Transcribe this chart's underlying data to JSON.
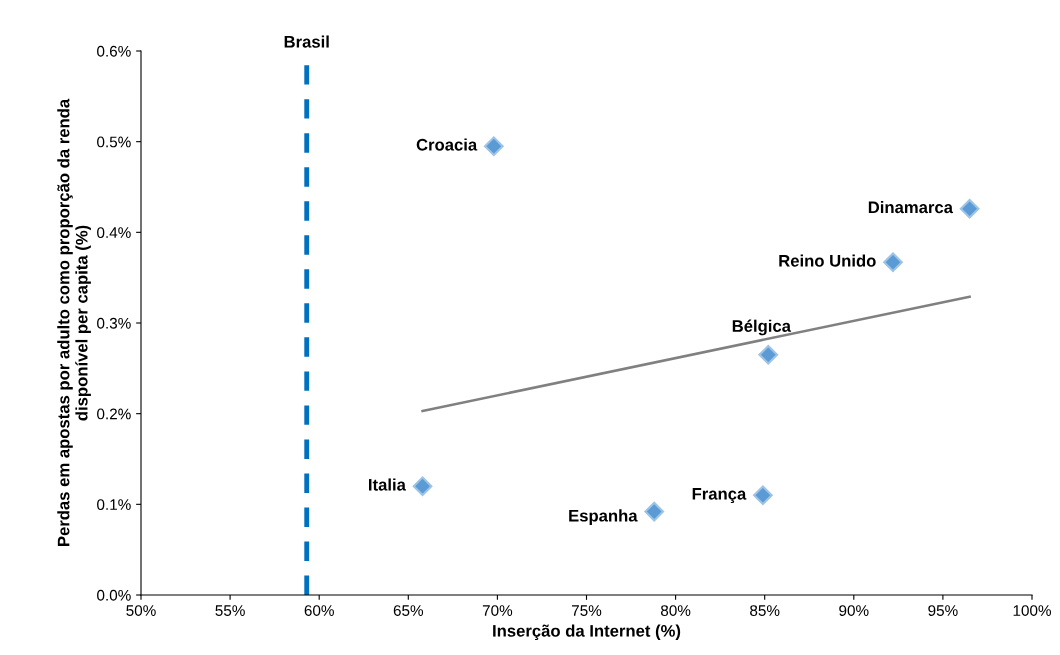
{
  "chart_data": {
    "type": "scatter",
    "xlabel": "Inserção da Internet (%)",
    "ylabel": "Perdas em apostas por adulto como proporção da renda\ndisponível per capita (%)",
    "xlim": [
      50,
      100
    ],
    "xticks": [
      {
        "value": 50,
        "label": "50%"
      },
      {
        "value": 55,
        "label": "55%"
      },
      {
        "value": 60,
        "label": "60%"
      },
      {
        "value": 65,
        "label": "65%"
      },
      {
        "value": 70,
        "label": "70%"
      },
      {
        "value": 75,
        "label": "75%"
      },
      {
        "value": 80,
        "label": "80%"
      },
      {
        "value": 85,
        "label": "85%"
      },
      {
        "value": 90,
        "label": "90%"
      },
      {
        "value": 95,
        "label": "95%"
      },
      {
        "value": 100,
        "label": "100%"
      }
    ],
    "ylim": [
      0,
      0.6
    ],
    "yticks": [
      {
        "value": 0,
        "label": "0.0%"
      },
      {
        "value": 0.1,
        "label": "0.1%"
      },
      {
        "value": 0.2,
        "label": "0.2%"
      },
      {
        "value": 0.3,
        "label": "0.3%"
      },
      {
        "value": 0.4,
        "label": "0.4%"
      },
      {
        "value": 0.5,
        "label": "0.5%"
      },
      {
        "value": 0.6,
        "label": "0.6%"
      }
    ],
    "grid": false,
    "legend": false,
    "marker": "diamond",
    "series": [
      {
        "color": "#5b9bd5",
        "x": [
          69.8,
          96.5,
          92.2,
          85.2,
          65.8,
          84.9,
          78.8
        ],
        "values": [
          0.495,
          0.426,
          0.367,
          0.265,
          0.12,
          0.11,
          0.092
        ]
      },
      {
        "type": "line",
        "color": "#808080",
        "x": [
          65.8,
          96.5
        ],
        "values": [
          0.203,
          0.329
        ],
        "marker": "none"
      }
    ],
    "ref_lines": [
      {
        "axis": "x",
        "value": 59.3,
        "label": "Brasil",
        "color": "#0070c0",
        "line_style": "dashed"
      }
    ],
    "annotations": [
      {
        "text": "Croacia",
        "x": 69.8,
        "y": 0.495
      },
      {
        "text": "Dinamarca",
        "x": 96.5,
        "y": 0.426
      },
      {
        "text": "Reino Unido",
        "x": 92.2,
        "y": 0.367
      },
      {
        "text": "Bélgica",
        "x": 85.2,
        "y": 0.265
      },
      {
        "text": "Italia",
        "x": 65.8,
        "y": 0.12
      },
      {
        "text": "França",
        "x": 84.9,
        "y": 0.11
      },
      {
        "text": "Espanha",
        "x": 78.8,
        "y": 0.092
      }
    ]
  }
}
